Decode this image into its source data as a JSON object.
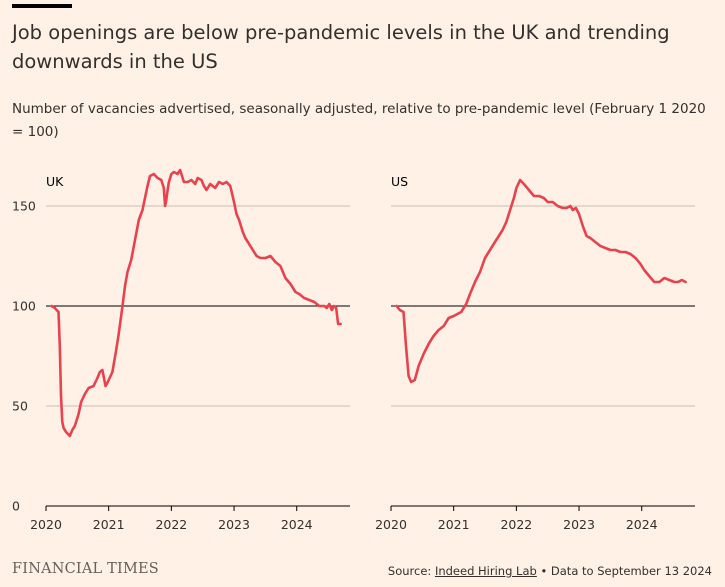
{
  "title": "Job openings are below pre-pandemic levels in the UK and trending downwards in the US",
  "subtitle": "Number of vacancies advertised, seasonally adjusted, relative to pre-pandemic level (February 1 2020 = 100)",
  "footer": {
    "brand": "FINANCIAL TIMES",
    "source_prefix": "Source: ",
    "source_link": "Indeed Hiring Lab",
    "source_suffix": " • Data to September 13 2024"
  },
  "colors": {
    "line": "#e9424f",
    "background": "#fff1e5",
    "grid": "#c9bfb5",
    "baseline": "#000000"
  },
  "chart_data": [
    {
      "type": "line",
      "panel_title": "UK",
      "xlim": [
        2020,
        2024.85
      ],
      "ylim": [
        0,
        170
      ],
      "x_ticks": [
        2020,
        2021,
        2022,
        2023,
        2024
      ],
      "x_tick_labels": [
        "2020",
        "2021",
        "2022",
        "2023",
        "2024"
      ],
      "y_ticks": [
        0,
        50,
        100,
        150
      ],
      "y_tick_labels": [
        "0",
        "50",
        "100",
        "150"
      ],
      "reference_line": 100,
      "grid": true,
      "series": [
        {
          "x": [
            2020.09,
            2020.14,
            2020.2,
            2020.22,
            2020.24,
            2020.26,
            2020.28,
            2020.32,
            2020.38,
            2020.42,
            2020.46,
            2020.52,
            2020.56,
            2020.62,
            2020.68,
            2020.76,
            2020.82,
            2020.86,
            2020.9,
            2020.95,
            2020.97,
            2021.0,
            2021.06,
            2021.12,
            2021.16,
            2021.22,
            2021.26,
            2021.3,
            2021.36,
            2021.42,
            2021.48,
            2021.54,
            2021.58,
            2021.62,
            2021.66,
            2021.72,
            2021.78,
            2021.84,
            2021.88,
            2021.9,
            2021.92,
            2021.94,
            2021.96,
            2022.0,
            2022.04,
            2022.1,
            2022.14,
            2022.16,
            2022.2,
            2022.26,
            2022.32,
            2022.38,
            2022.42,
            2022.48,
            2022.52,
            2022.56,
            2022.62,
            2022.7,
            2022.76,
            2022.82,
            2022.88,
            2022.94,
            2023.0,
            2023.04,
            2023.08,
            2023.14,
            2023.18,
            2023.24,
            2023.3,
            2023.36,
            2023.42,
            2023.5,
            2023.58,
            2023.66,
            2023.74,
            2023.82,
            2023.9,
            2023.98,
            2024.04,
            2024.12,
            2024.2,
            2024.28,
            2024.36,
            2024.44,
            2024.48,
            2024.52,
            2024.56,
            2024.6,
            2024.63,
            2024.66,
            2024.7
          ],
          "y": [
            100,
            99,
            97,
            80,
            55,
            42,
            39,
            37,
            35,
            38,
            40,
            46,
            52,
            56,
            59,
            60,
            64,
            67,
            68,
            60,
            61,
            63,
            67,
            78,
            86,
            100,
            110,
            117,
            123,
            133,
            143,
            148,
            154,
            160,
            165,
            166,
            164,
            163,
            159,
            150,
            153,
            158,
            162,
            166,
            167,
            166,
            168,
            166,
            162,
            162,
            163,
            161,
            164,
            163,
            160,
            158,
            161,
            159,
            162,
            161,
            162,
            160,
            152,
            146,
            143,
            137,
            134,
            131,
            128,
            125,
            124,
            124,
            125,
            122,
            120,
            114,
            111,
            107,
            106,
            104,
            103,
            102,
            100,
            100,
            99,
            101,
            98,
            100,
            99,
            91,
            91
          ]
        }
      ]
    },
    {
      "type": "line",
      "panel_title": "US",
      "xlim": [
        2020,
        2024.85
      ],
      "ylim": [
        0,
        170
      ],
      "x_ticks": [
        2020,
        2021,
        2022,
        2023,
        2024
      ],
      "x_tick_labels": [
        "2020",
        "2021",
        "2022",
        "2023",
        "2024"
      ],
      "y_ticks": [
        0,
        50,
        100,
        150
      ],
      "reference_line": 100,
      "grid": true,
      "series": [
        {
          "x": [
            2020.09,
            2020.14,
            2020.2,
            2020.24,
            2020.28,
            2020.32,
            2020.38,
            2020.44,
            2020.52,
            2020.6,
            2020.68,
            2020.76,
            2020.84,
            2020.92,
            2021.0,
            2021.06,
            2021.12,
            2021.2,
            2021.26,
            2021.34,
            2021.42,
            2021.5,
            2021.58,
            2021.66,
            2021.72,
            2021.78,
            2021.84,
            2021.9,
            2021.96,
            2022.0,
            2022.06,
            2022.12,
            2022.2,
            2022.28,
            2022.36,
            2022.44,
            2022.5,
            2022.58,
            2022.66,
            2022.74,
            2022.8,
            2022.86,
            2022.9,
            2022.95,
            2023.0,
            2023.06,
            2023.12,
            2023.18,
            2023.26,
            2023.34,
            2023.42,
            2023.5,
            2023.58,
            2023.66,
            2023.74,
            2023.82,
            2023.9,
            2023.98,
            2024.04,
            2024.12,
            2024.2,
            2024.28,
            2024.36,
            2024.44,
            2024.52,
            2024.58,
            2024.64,
            2024.7
          ],
          "y": [
            100,
            98,
            97,
            80,
            65,
            62,
            63,
            70,
            76,
            81,
            85,
            88,
            90,
            94,
            95,
            96,
            97,
            101,
            106,
            112,
            117,
            124,
            128,
            132,
            135,
            138,
            142,
            148,
            154,
            159,
            163,
            161,
            158,
            155,
            155,
            154,
            152,
            152,
            150,
            149,
            149,
            150,
            148,
            149,
            146,
            140,
            135,
            134,
            132,
            130,
            129,
            128,
            128,
            127,
            127,
            126,
            124,
            121,
            118,
            115,
            112,
            112,
            114,
            113,
            112,
            112,
            113,
            112
          ]
        }
      ]
    }
  ]
}
